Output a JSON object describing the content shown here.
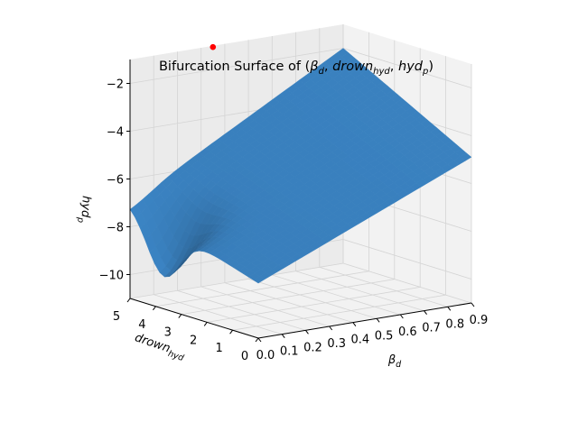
{
  "chart_data": {
    "type": "surface3d",
    "title": "Bifurcation Surface of (βd, drownhyd, hydp)",
    "title_parts": {
      "prefix": "Bifurcation Surface of (",
      "v1_base": "β",
      "v1_sub": "d",
      "sep1": ", ",
      "v2_base": "drown",
      "v2_sub": "hyd",
      "sep2": ", ",
      "v3_base": "hyd",
      "v3_sub": "p",
      "suffix": ")"
    },
    "x_axis": {
      "label_base": "β",
      "label_sub": "d",
      "range": [
        0,
        0.9
      ],
      "ticks": [
        "0.0",
        "0.1",
        "0.2",
        "0.3",
        "0.4",
        "0.5",
        "0.6",
        "0.7",
        "0.8",
        "0.9"
      ]
    },
    "y_axis": {
      "label_base": "drown",
      "label_sub": "hyd",
      "range": [
        0,
        5
      ],
      "ticks": [
        "0",
        "1",
        "2",
        "3",
        "4",
        "5"
      ]
    },
    "z_axis": {
      "label_base": "hyd",
      "label_sub": "p",
      "range": [
        -11,
        -1
      ],
      "ticks": [
        "−2",
        "−4",
        "−6",
        "−8",
        "−10"
      ],
      "tick_values": [
        -2,
        -4,
        -6,
        -8,
        -10
      ]
    },
    "surface": {
      "color": "#3b84c4",
      "corners": [
        {
          "x": 0.0,
          "y": 0.0,
          "z": -8.7
        },
        {
          "x": 0.9,
          "y": 0.0,
          "z": -4.9
        },
        {
          "x": 0.9,
          "y": 5.0,
          "z": -2.0
        },
        {
          "x": 0.0,
          "y": 5.0,
          "z": -7.0
        }
      ],
      "valley_min_z": -10.1
    },
    "marker": {
      "x": 0.35,
      "y": 5.0,
      "z": -1.05,
      "color": "#ff0000"
    },
    "grid": true,
    "pane_color": "#f2f2f2"
  }
}
